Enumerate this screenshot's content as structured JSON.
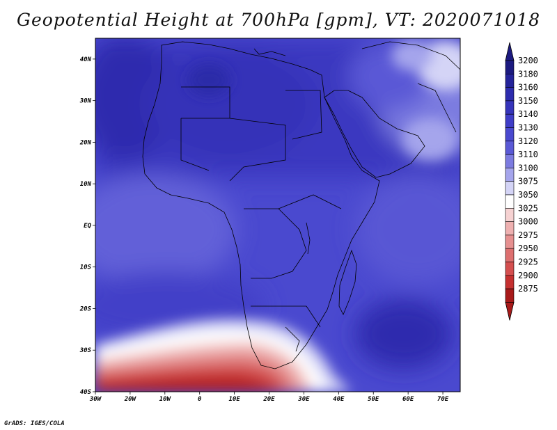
{
  "title": "Geopotential Height at 700hPa [gpm], VT: 2020071018",
  "credit": "GrADS: IGES/COLA",
  "map": {
    "projection": "latlon",
    "region": "Africa",
    "lon_range": [
      "30W",
      "75E"
    ],
    "lat_range": [
      "40S",
      "45N"
    ],
    "x_ticks": [
      "30W",
      "20W",
      "10W",
      "0",
      "10E",
      "20E",
      "30E",
      "40E",
      "50E",
      "60E",
      "70E"
    ],
    "y_ticks": [
      "40N",
      "30N",
      "20N",
      "10N",
      "EQ",
      "10S",
      "20S",
      "30S",
      "40S"
    ]
  },
  "colorbar": {
    "orientation": "vertical",
    "levels": [
      "3200",
      "3180",
      "3160",
      "3150",
      "3140",
      "3130",
      "3120",
      "3110",
      "3100",
      "3075",
      "3050",
      "3025",
      "3000",
      "2975",
      "2950",
      "2925",
      "2900",
      "2875"
    ],
    "colors": [
      "#1c1a80",
      "#24239a",
      "#2d2cae",
      "#3634bb",
      "#3f3dc7",
      "#4a49cf",
      "#5a59d6",
      "#7c7be0",
      "#a5a5ec",
      "#d4d4f6",
      "#ffffff",
      "#f6d2d2",
      "#eeb0b0",
      "#e69090",
      "#dd6f6f",
      "#d44f4f",
      "#c53030",
      "#a81a1a"
    ]
  }
}
